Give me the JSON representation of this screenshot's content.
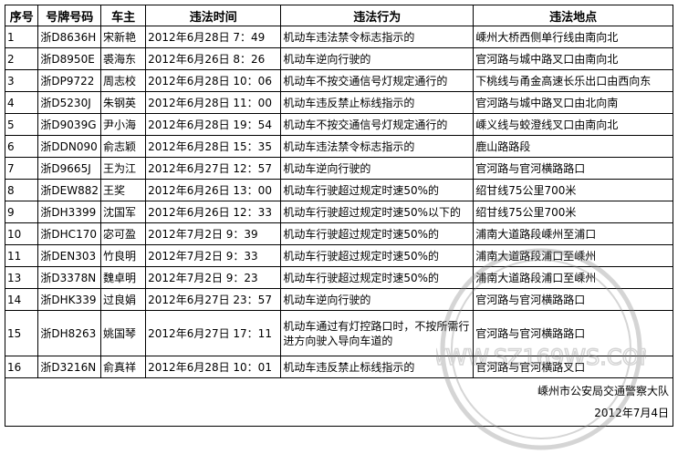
{
  "headers": [
    "序号",
    "号牌号码",
    "车主",
    "违法时间",
    "违法行为",
    "违法地点"
  ],
  "rows": [
    [
      "1",
      "浙D8636H",
      "宋新艳",
      "2012年6月28日 7：49",
      "机动车违法禁令标志指示的",
      "嵊州大桥西侧单行线由南向北"
    ],
    [
      "2",
      "浙D8950E",
      "裘海东",
      "2012年6月26日 8：26",
      "机动车逆向行驶的",
      "官河路与城中路叉口由南向北"
    ],
    [
      "3",
      "浙DP9722",
      "周志校",
      "2012年6月28日 10：06",
      "机动车不按交通信号灯规定通行的",
      "下桃线与甬金高速长乐出口由西向东"
    ],
    [
      "4",
      "浙D5230J",
      "朱钢英",
      "2012年6月28日 11：00",
      "机动车违反禁止标线指示的",
      "官河路与城中路叉口由北向南"
    ],
    [
      "5",
      "浙D9039G",
      "尹小海",
      "2012年6月28日 19：54",
      "机动车不按交通信号灯规定通行的",
      "嵊义线与蛟澄线叉口由南向北"
    ],
    [
      "6",
      "浙DDN090",
      "俞志颖",
      "2012年6月28日 15：35",
      "机动车违法禁令标志指示的",
      "鹿山路路段"
    ],
    [
      "7",
      "浙D9665J",
      "王为江",
      "2012年6月27日 12：57",
      "机动车逆向行驶的",
      "官河路与官河横路路口"
    ],
    [
      "8",
      "浙DEW882",
      "王奖",
      "2012年6月26日 13：00",
      "机动车行驶超过规定时速50%的",
      "绍甘线75公里700米"
    ],
    [
      "9",
      "浙DH3399",
      "沈国军",
      "2012年6月26日 12：33",
      "机动车行驶超过规定时速50%以下的",
      "绍甘线75公里700米"
    ],
    [
      "10",
      "浙DHC170",
      "宓可盈",
      "2012年7月2日 9：39",
      "机动车行驶超过规定时速50%的",
      "浦南大道路段嵊州至浦口"
    ],
    [
      "11",
      "浙DEN303",
      "竹良明",
      "2012年7月2日 9：33",
      "机动车行驶超过规定时速50%的",
      "浦南大道路段浦口至嵊州"
    ],
    [
      "13",
      "浙D3378N",
      "魏卓明",
      "2012年7月2日 9：23",
      "机动车行驶超过规定时速50%的",
      "浦南大道路段浦口至嵊州"
    ],
    [
      "14",
      "浙DHK339",
      "过良娟",
      "2012年6月27日 23：57",
      "机动车逆向行驶的",
      "官河路与官河横路路口"
    ],
    [
      "15",
      "浙DH8263",
      "姚国琴",
      "2012年6月27日 17：11",
      "机动车通过有灯控路口时，不按所需行进方向驶入导向车道的",
      "官河路与官河横路路口"
    ],
    [
      "16",
      "浙D3216N",
      "俞真祥",
      "2012年6月28日 10：01",
      "机动车违反禁止标线指示的",
      "官河路与官河横路叉口"
    ]
  ],
  "footer": {
    "issuer": "嵊州市公安局交通警察大队",
    "date": "2012年7月4日"
  },
  "watermark": {
    "text": "WWW.SZ169WS.COM",
    "icon": "seal-stamp"
  }
}
